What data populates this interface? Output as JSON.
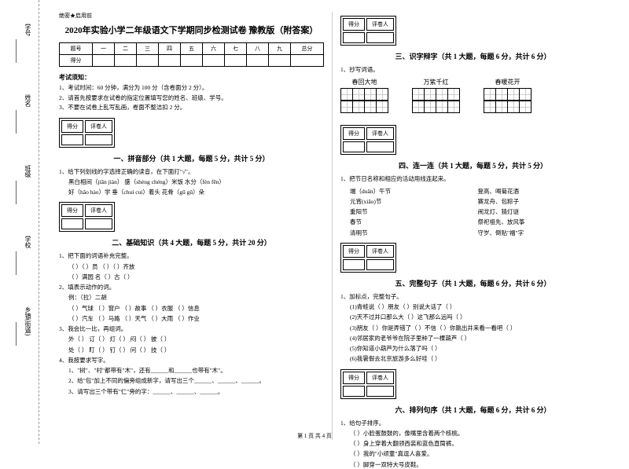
{
  "leftMargin": {
    "labels": [
      "学号",
      "姓名",
      "班级",
      "学校",
      "乡镇(街道)"
    ],
    "dashChars": [
      "题",
      "名",
      "本",
      "内",
      "线",
      "封",
      "密"
    ]
  },
  "header": {
    "confidential": "绝密★启用前",
    "title": "2020年实验小学二年级语文下学期同步检测试卷 豫教版（附答案）"
  },
  "scoreTable": {
    "cols": [
      "题号",
      "一",
      "二",
      "三",
      "四",
      "五",
      "六",
      "七",
      "八",
      "九",
      "总分"
    ],
    "row2": "得分"
  },
  "examNotice": {
    "title": "考试须知：",
    "items": [
      "1、考试时间：60 分钟，满分为 100 分（含卷面分 2 分）。",
      "2、请首先按要求在试卷的指定位置填写您的姓名、班级、学号。",
      "3、不要在试卷上乱写乱画，卷面不整洁扣 2 分。"
    ]
  },
  "scoreBox": {
    "c1": "得分",
    "c2": "评卷人"
  },
  "part1": {
    "title": "一、拼音部分（共 1 大题，每题 5 分，共计 5 分）",
    "q1": "1、给下列划线的字选择正确的读音，在下面打\"√\"。",
    "items": [
      "黑白相间（jiān  jiàn）        盛（shèng chéng）米饭        水分（fèn  fēn）",
      "好（hǎo  hào）学            垂（chuí  cuí）着头            花骨（gū  gǔ）朵"
    ]
  },
  "part2": {
    "title": "二、基础知识（共 4 大题，每题 5 分，共计 20 分）",
    "q1": "1、把下面的词语补充完整。",
    "q1i": [
      "（    ）（    ）员        （    ）（    ）齐放",
      "（    ）满园        名（    ）古（    ）"
    ],
    "q2": "2、填表示动作的词。",
    "q2a": "例：（拉）二胡",
    "q2i": [
      "（    ）气球  （    ）窗户  （    ）故事  （    ）衣服  （    ）信息",
      "（    ）汽车  （    ）马路  （    ）天气  （    ）大雨  （    ）作业"
    ],
    "q3": "3、我会比一比，再组词。",
    "q3i": [
      "外（    ）    订（    ）    灯（    ）    闷（    ）    披（    ）",
      "处（    ）    盯（    ）    钉（    ）    问（    ）    技（    ）"
    ],
    "q4": "4、我按要求写字。",
    "q4i": [
      "1、\"树\"、\"村\"都带有\"木\"，还有______和______也带有\"木\"。",
      "2、给\"包\"加上不同的偏旁组成新字，请写出三个______、______、______。",
      "3、请写出三个带有\"仁\"旁的字：______、______、______。"
    ]
  },
  "part3": {
    "title": "三、识字辩字（共 1 大题，每题 6 分，共计 6 分）",
    "q1": "1、抄写词语。",
    "words": [
      "春回大地",
      "万紫千红",
      "春暖花开"
    ]
  },
  "part4": {
    "title": "四、连一连（共 1 大题，每题 5 分，共计 5 分）",
    "q1": "1、把节日名称和相应的活动用线连起来。",
    "left": [
      "端（duān）午节",
      "元宵(xiāo)节",
      "重阳节",
      "春节",
      "清明节"
    ],
    "right": [
      "登高、喝菊花酒",
      "赛龙舟、包粽子",
      "闹龙灯、猜灯谜",
      "祭祀祖先、放风筝",
      "守岁、倒贴\"福\"字"
    ]
  },
  "part5": {
    "title": "五、完整句子（共 1 大题，每题 6 分，共计 6 分）",
    "q1": "1、加标点，完整句子。",
    "items": [
      "(1)青蛙说（    ）朋友（    ）别说大话了（    ）",
      "(2)天不过井口那么大（    ）这飞那么远吗（    ）",
      "(3)朋友（    ）你是弄错了（    ）不信（    ）你跳出井来看一看吧（    ）",
      "(4)邻居家的老爷爷在院子里种了一棵葫芦（    ）",
      "(5)你知道小葫芦为什么落了吗（    ）",
      "(6)我暑假去北京旅游多么好哇（    ）"
    ]
  },
  "part6": {
    "title": "六、排列句序（共 1 大题，每题 6 分，共计 6 分）",
    "q1": "1、给句子排序。",
    "items": [
      "（    ）小脸蛋鼓鼓的，像嘴里含着两个核桃。",
      "（    ）身上穿着大翻领西装和蓝色直筒裤。",
      "（    ）我的\"小顽童\"真逗人喜爱。",
      "（    ）脚穿一双特大号皮鞋。"
    ]
  },
  "footer": "第 1 页 共 4 页"
}
